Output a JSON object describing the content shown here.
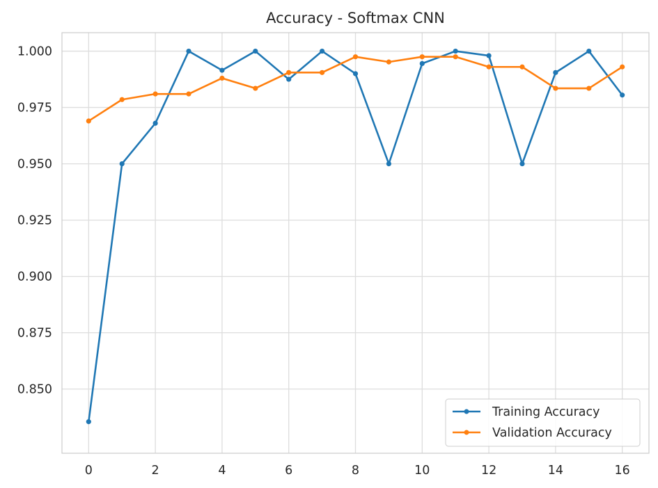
{
  "chart_data": {
    "type": "line",
    "title": "Accuracy - Softmax CNN",
    "xlabel": "",
    "ylabel": "",
    "xlim": [
      -0.8,
      16.8
    ],
    "ylim": [
      0.8215,
      1.0082
    ],
    "grid": true,
    "legend_position": "lower-right",
    "x": [
      0,
      1,
      2,
      3,
      4,
      5,
      6,
      7,
      8,
      9,
      10,
      11,
      12,
      13,
      14,
      15,
      16
    ],
    "xticks": [
      0,
      2,
      4,
      6,
      8,
      10,
      12,
      14,
      16
    ],
    "yticks": [
      0.85,
      0.875,
      0.9,
      0.925,
      0.95,
      0.975,
      1.0
    ],
    "ytick_labels": [
      "0.850",
      "0.875",
      "0.900",
      "0.925",
      "0.950",
      "0.975",
      "1.000"
    ],
    "series": [
      {
        "name": "Training Accuracy",
        "color": "#1f77b4",
        "values": [
          0.8355,
          0.95,
          0.968,
          1.0,
          0.9915,
          1.0,
          0.9875,
          1.0,
          0.99,
          0.95,
          0.9945,
          1.0,
          0.998,
          0.95,
          0.9905,
          1.0,
          0.9805
        ]
      },
      {
        "name": "Validation Accuracy",
        "color": "#ff7f0e",
        "values": [
          0.969,
          0.9785,
          0.981,
          0.981,
          0.988,
          0.9835,
          0.9905,
          0.9905,
          0.9975,
          0.9952,
          0.9975,
          0.9975,
          0.993,
          0.993,
          0.9835,
          0.9835,
          0.993
        ]
      }
    ]
  }
}
